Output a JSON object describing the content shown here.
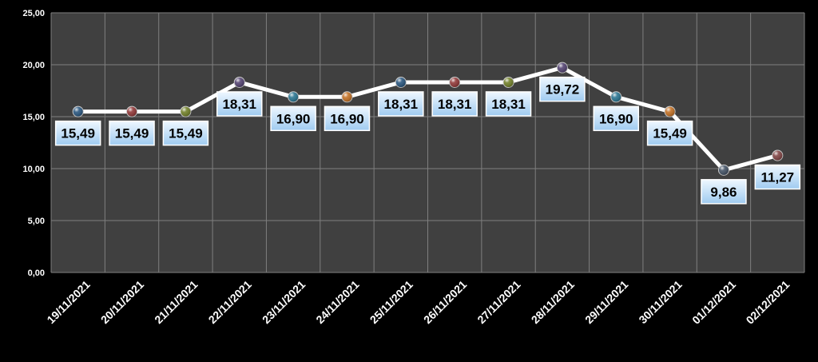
{
  "chart_data": {
    "type": "line",
    "title": "",
    "xlabel": "",
    "ylabel": "",
    "categories": [
      "19/11/2021",
      "20/11/2021",
      "21/11/2021",
      "22/11/2021",
      "23/11/2021",
      "24/11/2021",
      "25/11/2021",
      "26/11/2021",
      "27/11/2021",
      "28/11/2021",
      "29/11/2021",
      "30/11/2021",
      "01/12/2021",
      "02/12/2021"
    ],
    "series": [
      {
        "values": [
          15.49,
          15.49,
          15.49,
          18.31,
          16.9,
          16.9,
          18.31,
          18.31,
          18.31,
          19.72,
          16.9,
          15.49,
          9.86,
          11.27
        ],
        "data_labels": [
          "15,49",
          "15,49",
          "15,49",
          "18,31",
          "16,90",
          "16,90",
          "18,31",
          "18,31",
          "18,31",
          "19,72",
          "16,90",
          "15,49",
          "9,86",
          "11,27"
        ],
        "line_color": "#FFFFFF"
      }
    ],
    "marker_colors": [
      "#1F4E79",
      "#8B2E2E",
      "#6B7A1E",
      "#4B3A6B",
      "#1F6E8C",
      "#C06A1A",
      "#1F4E79",
      "#8B2E2E",
      "#6B7A1E",
      "#4B3A6B",
      "#1F6E8C",
      "#C06A1A",
      "#3A4A5E",
      "#7A3A3A"
    ],
    "ylim": [
      0,
      25
    ],
    "y_ticks": [
      0,
      5,
      10,
      15,
      20,
      25
    ],
    "y_tick_labels": [
      "0,00",
      "5,00",
      "10,00",
      "15,00",
      "20,00",
      "25,00"
    ],
    "grid": true,
    "legend": "none",
    "colors": {
      "background": "#000000",
      "plot_area": "#404040",
      "gridline": "#7F7F7F",
      "axis_text": "#FFFFFF",
      "label_fill": "#CDE6FA",
      "label_text": "#000000"
    }
  }
}
